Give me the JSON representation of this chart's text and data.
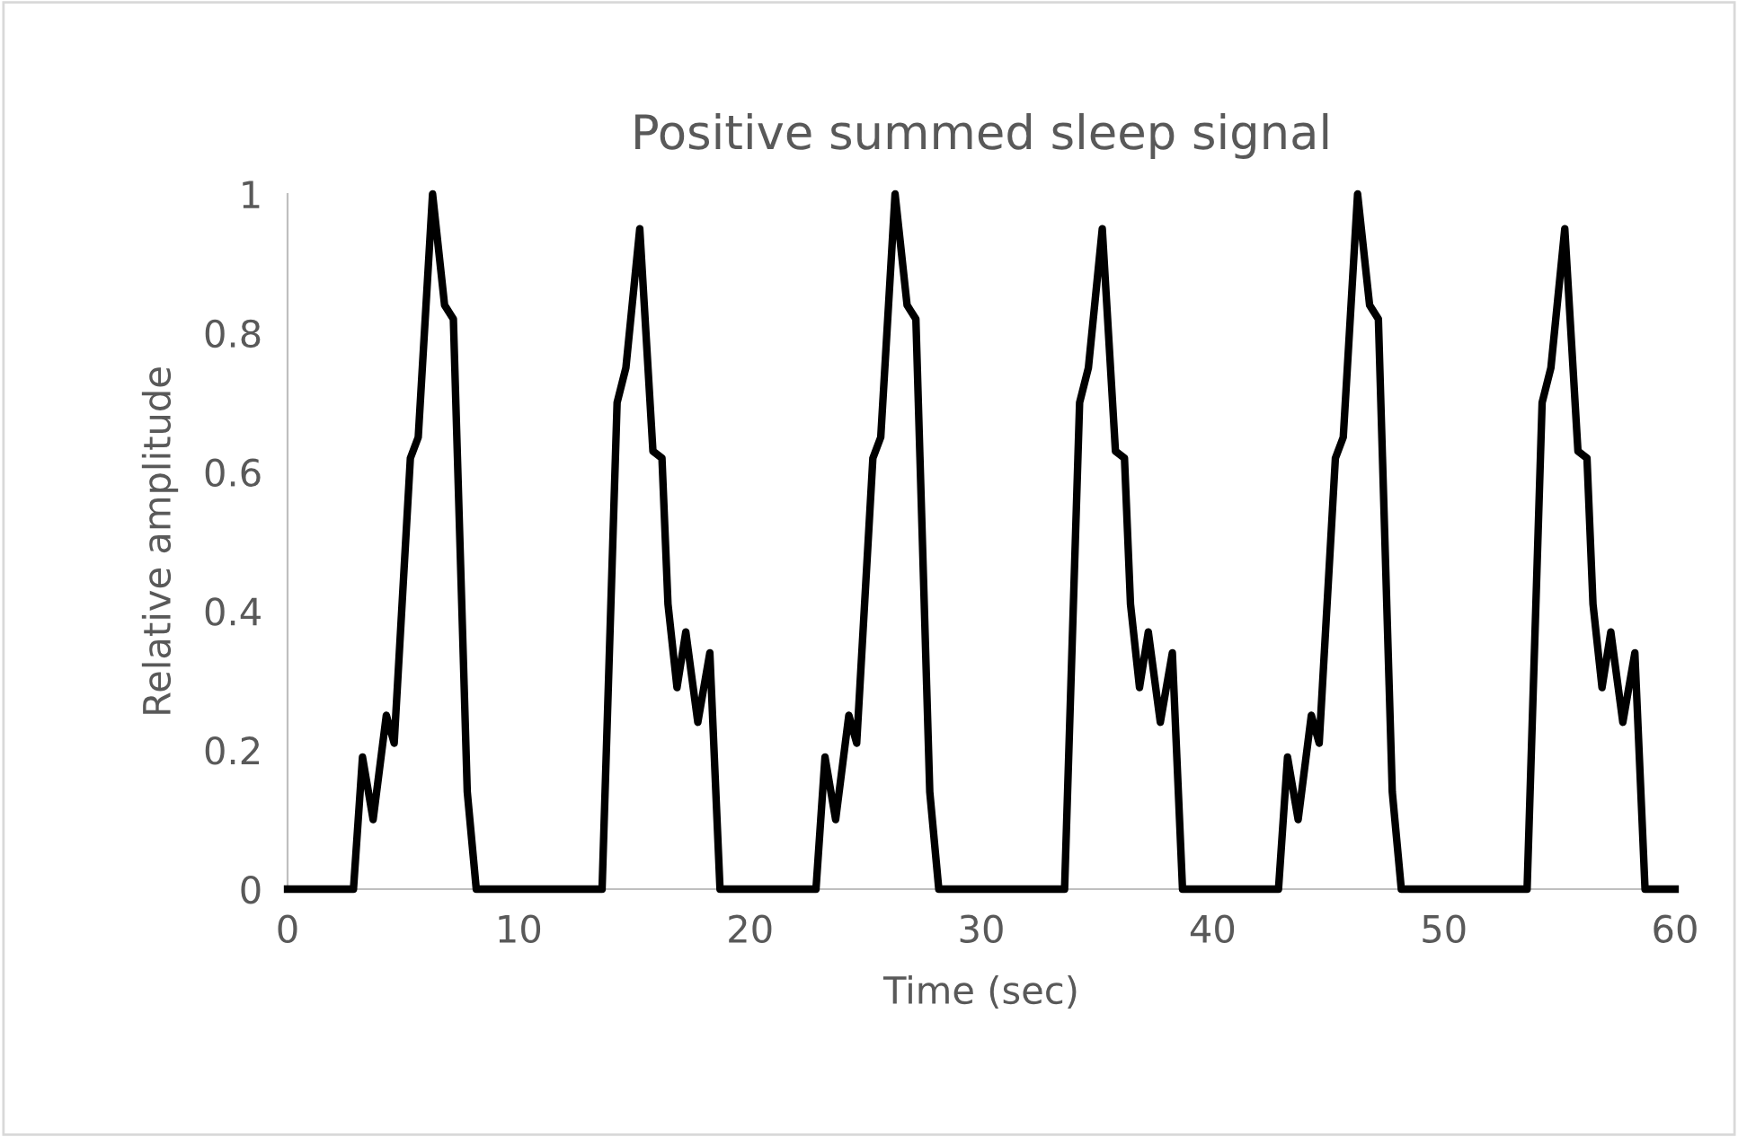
{
  "chart_data": {
    "type": "line",
    "title": "Positive summed sleep signal",
    "xlabel": "Time (sec)",
    "ylabel": "Relative amplitude",
    "xlim": [
      0,
      60
    ],
    "xticks": [
      0,
      10,
      20,
      30,
      40,
      50,
      60
    ],
    "ylim": [
      0,
      1
    ],
    "yticks": [
      0,
      0.2,
      0.4,
      0.6,
      0.8,
      1
    ],
    "grid": false,
    "legend": false,
    "marker": "none",
    "line_style": "solid",
    "series": [
      {
        "color": "#000000",
        "x": [
          0,
          2.85,
          3.24,
          3.7,
          4.27,
          4.61,
          5.31,
          5.65,
          6.27,
          6.79,
          7.17,
          7.77,
          8.16,
          13.6,
          14.25,
          14.63,
          15.23,
          15.8,
          16.19,
          16.45,
          16.84,
          17.22,
          17.74,
          18.26,
          18.7,
          22.85,
          23.24,
          23.7,
          24.27,
          24.61,
          25.31,
          25.65,
          26.27,
          26.79,
          27.17,
          27.77,
          28.16,
          33.6,
          34.25,
          34.63,
          35.23,
          35.8,
          36.19,
          36.45,
          36.84,
          37.22,
          37.74,
          38.26,
          38.7,
          42.85,
          43.24,
          43.7,
          44.27,
          44.61,
          45.31,
          45.65,
          46.27,
          46.79,
          47.17,
          47.77,
          48.16,
          53.6,
          54.25,
          54.63,
          55.23,
          55.8,
          56.19,
          56.45,
          56.84,
          57.22,
          57.74,
          58.26,
          58.7,
          60
        ],
        "values": [
          0,
          0,
          0.19,
          0.1,
          0.25,
          0.21,
          0.62,
          0.65,
          1,
          0.84,
          0.82,
          0.14,
          0,
          0,
          0.7,
          0.75,
          0.95,
          0.63,
          0.62,
          0.41,
          0.29,
          0.37,
          0.24,
          0.34,
          0,
          0,
          0.19,
          0.1,
          0.25,
          0.21,
          0.62,
          0.65,
          1,
          0.84,
          0.82,
          0.14,
          0,
          0,
          0.7,
          0.75,
          0.95,
          0.63,
          0.62,
          0.41,
          0.29,
          0.37,
          0.24,
          0.34,
          0,
          0,
          0.19,
          0.1,
          0.25,
          0.21,
          0.62,
          0.65,
          1,
          0.84,
          0.82,
          0.14,
          0,
          0,
          0.7,
          0.75,
          0.95,
          0.63,
          0.62,
          0.41,
          0.29,
          0.37,
          0.24,
          0.34,
          0,
          0
        ]
      }
    ]
  }
}
